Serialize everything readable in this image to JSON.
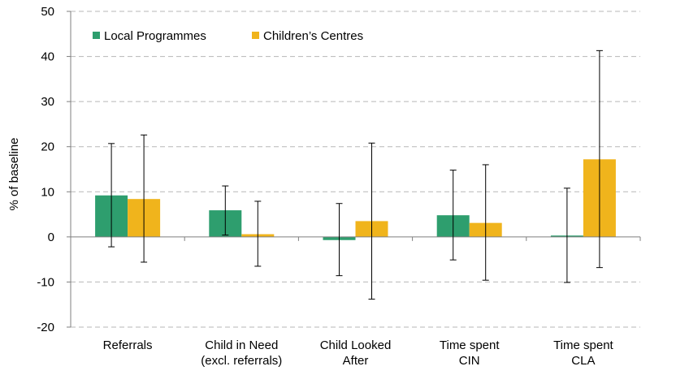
{
  "chart_data": {
    "type": "bar",
    "title": "",
    "xlabel": "",
    "ylabel": "% of baseline",
    "ylim": [
      -20,
      50
    ],
    "yticks": [
      -20,
      -10,
      0,
      10,
      20,
      30,
      40,
      50
    ],
    "grid": true,
    "legend_position": "top-left",
    "categories": [
      [
        "Referrals"
      ],
      [
        "Child in Need",
        "(excl. referrals)"
      ],
      [
        "Child Looked",
        "After"
      ],
      [
        "Time spent",
        "CIN"
      ],
      [
        "Time spent",
        "CLA"
      ]
    ],
    "series": [
      {
        "name": "Local Programmes",
        "color": "#2e9e6e",
        "values": [
          9.2,
          5.9,
          -0.7,
          4.8,
          0.3
        ],
        "error_low": [
          -2.2,
          0.4,
          -8.6,
          -5.1,
          -10.1
        ],
        "error_high": [
          20.7,
          11.3,
          7.4,
          14.8,
          10.8
        ]
      },
      {
        "name": "Children’s Centres",
        "color": "#f0b41c",
        "values": [
          8.4,
          0.6,
          3.5,
          3.1,
          17.2
        ],
        "error_low": [
          -5.6,
          -6.5,
          -13.8,
          -9.6,
          -6.8
        ],
        "error_high": [
          22.6,
          7.9,
          20.8,
          16.0,
          41.3
        ]
      }
    ]
  }
}
